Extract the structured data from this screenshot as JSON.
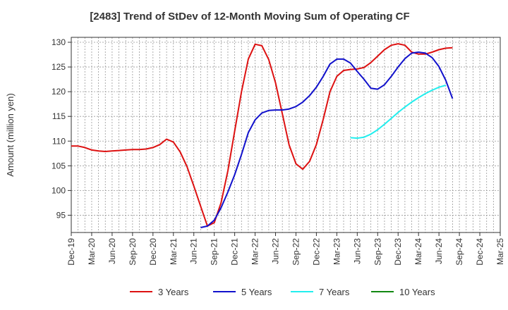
{
  "chart_data": {
    "type": "line",
    "title": "[2483]  Trend of StDev of 12-Month Moving Sum of Operating CF",
    "xlabel": "",
    "ylabel": "Amount (million yen)",
    "x_ticks": [
      "Dec-19",
      "Mar-20",
      "Jun-20",
      "Sep-20",
      "Dec-20",
      "Mar-21",
      "Jun-21",
      "Sep-21",
      "Dec-21",
      "Mar-22",
      "Jun-22",
      "Sep-22",
      "Dec-22",
      "Mar-23",
      "Jun-23",
      "Sep-23",
      "Dec-23",
      "Mar-24",
      "Jun-24",
      "Sep-24",
      "Dec-24",
      "Mar-25"
    ],
    "y_ticks": [
      95,
      100,
      105,
      110,
      115,
      120,
      125,
      130
    ],
    "ylim": [
      91.5,
      131
    ],
    "grid": true,
    "legend_position": "bottom",
    "series": [
      {
        "name": "3 Years",
        "color": "#dd1111",
        "start_index": 0,
        "values": [
          109.0,
          109.0,
          108.7,
          108.2,
          108.0,
          107.9,
          108.0,
          108.1,
          108.2,
          108.3,
          108.3,
          108.4,
          108.7,
          109.3,
          110.4,
          109.8,
          107.8,
          104.8,
          100.9,
          96.8,
          92.8,
          93.5,
          97.5,
          104.0,
          112.0,
          120.0,
          126.6,
          129.6,
          129.3,
          126.5,
          121.8,
          115.5,
          109.2,
          105.4,
          104.3,
          105.9,
          109.3,
          114.4,
          120.0,
          123.1,
          124.3,
          124.5,
          124.6,
          124.9,
          125.9,
          127.2,
          128.5,
          129.4,
          129.7,
          129.4,
          128.0,
          127.6,
          127.6,
          128.0,
          128.5,
          128.8,
          128.9
        ]
      },
      {
        "name": "5 Years",
        "color": "#1111cc",
        "start_index": 19,
        "values": [
          92.5,
          92.8,
          94.0,
          96.5,
          99.7,
          103.2,
          107.3,
          111.7,
          114.3,
          115.7,
          116.2,
          116.3,
          116.3,
          116.5,
          117.0,
          117.9,
          119.2,
          120.9,
          123.1,
          125.6,
          126.6,
          126.6,
          125.8,
          124.1,
          122.5,
          120.7,
          120.5,
          121.4,
          123.1,
          125.0,
          126.7,
          127.8,
          128.0,
          127.8,
          126.9,
          125.1,
          122.3,
          118.6
        ]
      },
      {
        "name": "7 Years",
        "color": "#22eeee",
        "start_index": 41,
        "values": [
          110.7,
          110.6,
          110.8,
          111.4,
          112.3,
          113.4,
          114.6,
          115.8,
          116.9,
          117.9,
          118.8,
          119.6,
          120.3,
          120.9,
          121.3
        ]
      },
      {
        "name": "10 Years",
        "color": "#118811",
        "start_index": 0,
        "values": []
      }
    ]
  }
}
